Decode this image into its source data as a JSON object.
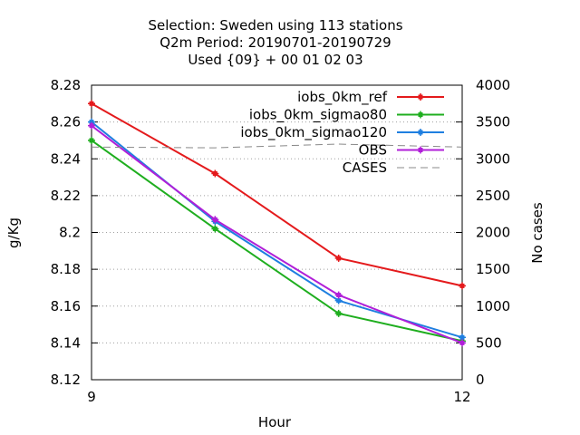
{
  "chart_data": {
    "type": "line",
    "title_lines": [
      "Selection: Sweden using   113 stations",
      "Q2m   Period: 20190701-20190729",
      "Used {09} + 00 01 02 03"
    ],
    "xlabel": "Hour",
    "ylabel": "g/Kg",
    "y2label": "No cases",
    "x_ticks": [
      "9",
      "12"
    ],
    "xlim": [
      9,
      12
    ],
    "ylim": [
      8.12,
      8.28
    ],
    "y_ticks": [
      "8.28",
      "8.26",
      "8.24",
      "8.22",
      "8.2",
      "8.18",
      "8.16",
      "8.14",
      "8.12"
    ],
    "y2lim": [
      0,
      4000
    ],
    "y2_ticks": [
      "4000",
      "3500",
      "3000",
      "2500",
      "2000",
      "1500",
      "1000",
      "500",
      "0"
    ],
    "grid": "horizontal dotted",
    "legend_position": "top-right",
    "series": [
      {
        "name": "iobs_0km_ref",
        "color": "#e41a1c",
        "axis": "y",
        "x": [
          9,
          10,
          11,
          12
        ],
        "values": [
          8.27,
          8.232,
          8.186,
          8.171
        ]
      },
      {
        "name": "iobs_0km_sigmao80",
        "color": "#1fae1f",
        "axis": "y",
        "x": [
          9,
          10,
          11,
          12
        ],
        "values": [
          8.25,
          8.202,
          8.156,
          8.141
        ]
      },
      {
        "name": "iobs_0km_sigmao120",
        "color": "#1f7fe0",
        "axis": "y",
        "x": [
          9,
          10,
          11,
          12
        ],
        "values": [
          8.26,
          8.206,
          8.163,
          8.143
        ]
      },
      {
        "name": "OBS",
        "color": "#b01fd8",
        "axis": "y",
        "x": [
          9,
          10,
          11,
          12
        ],
        "values": [
          8.258,
          8.207,
          8.166,
          8.14
        ]
      },
      {
        "name": "CASES",
        "color": "#888888",
        "axis": "y2",
        "dashed": true,
        "x": [
          9,
          10,
          11,
          12
        ],
        "values": [
          3160,
          3150,
          3200,
          3160
        ]
      }
    ]
  }
}
